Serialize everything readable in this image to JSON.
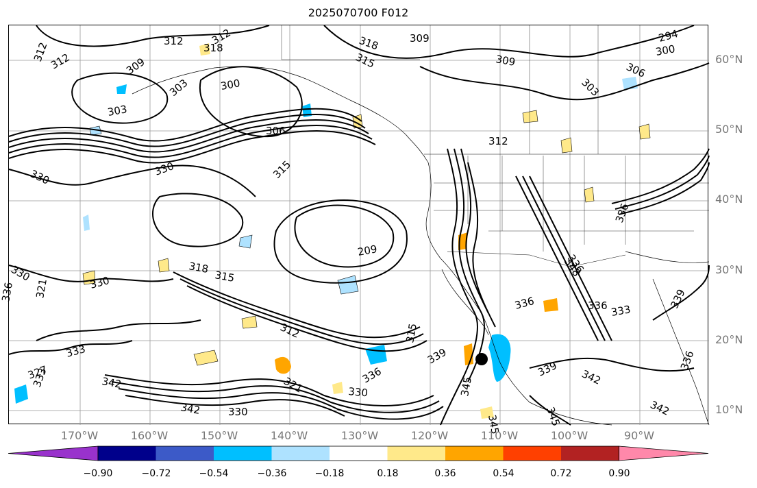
{
  "header": {
    "title": "2025070700 F012"
  },
  "map": {
    "lat_labels": [
      "60°N",
      "50°N",
      "40°N",
      "30°N",
      "20°N",
      "10°N"
    ],
    "lon_labels": [
      "170°W",
      "160°W",
      "150°W",
      "140°W",
      "130°W",
      "120°W",
      "110°W",
      "100°W",
      "90°W"
    ],
    "contour_labels": [
      "312",
      "318",
      "312",
      "312",
      "318",
      "315",
      "309",
      "303",
      "300",
      "294",
      "306",
      "312",
      "309",
      "303",
      "300",
      "309",
      "303",
      "306",
      "312",
      "330",
      "330",
      "315",
      "330",
      "318",
      "315",
      "209",
      "330",
      "336",
      "321",
      "336",
      "336",
      "312",
      "315",
      "333",
      "333",
      "342",
      "321",
      "330",
      "336",
      "339",
      "348",
      "345",
      "339",
      "336",
      "339",
      "330",
      "342",
      "342",
      "345",
      "345",
      "342",
      "333",
      "336",
      "336",
      "327"
    ]
  },
  "colorbar": {
    "ticks": [
      "−0.90",
      "−0.72",
      "−0.54",
      "−0.36",
      "−0.18",
      "0.18",
      "0.36",
      "0.54",
      "0.72",
      "0.90"
    ],
    "colors": [
      "#9932cc",
      "#00008b",
      "#3c5ac8",
      "#00bfff",
      "#aee2ff",
      "#ffffff",
      "#ffe98a",
      "#ffa500",
      "#ff4000",
      "#b22222",
      "#ff88aa"
    ]
  }
}
